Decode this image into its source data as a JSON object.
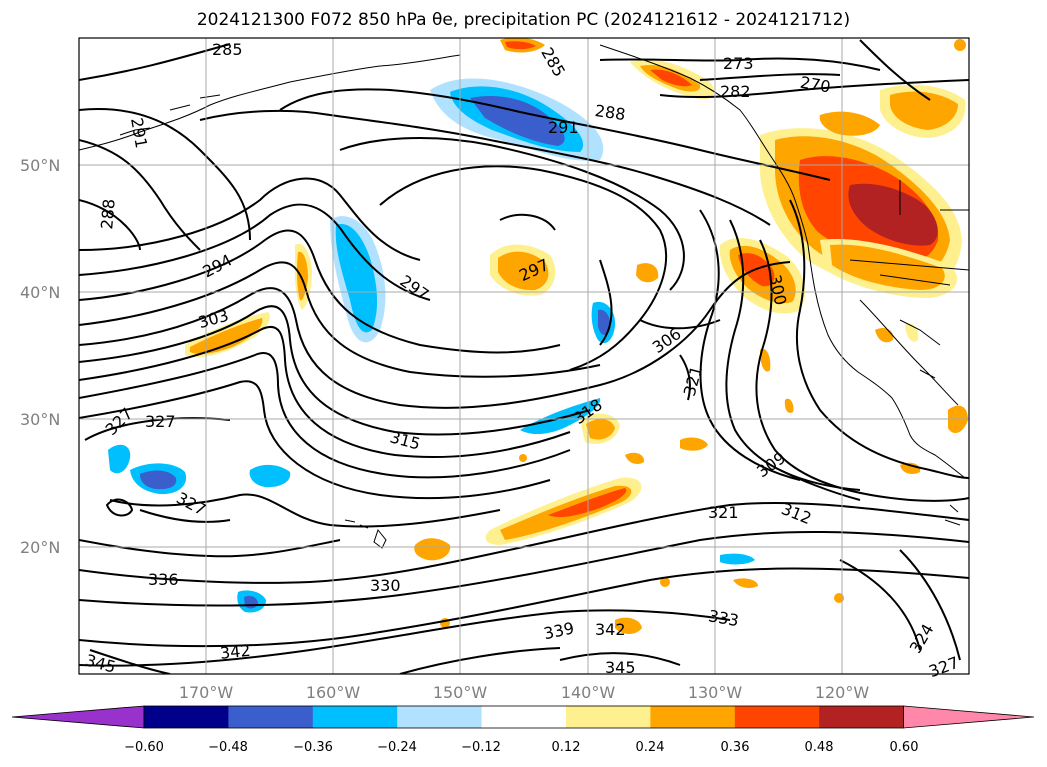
{
  "title": "2024121300 F072 850 hPa θe, precipitation PC (2024121612 - 2024121712)",
  "map": {
    "lon_range": [
      -180,
      -110
    ],
    "lat_range": [
      10,
      60
    ],
    "lat_ticks": [
      "50°N",
      "40°N",
      "30°N",
      "20°N"
    ],
    "lon_ticks": [
      "170°W",
      "160°W",
      "150°W",
      "140°W",
      "130°W",
      "120°W"
    ],
    "gridlines": true
  },
  "contour_labels": [
    "285",
    "285",
    "273",
    "270",
    "282",
    "288",
    "291",
    "291",
    "288",
    "294",
    "297",
    "297",
    "303",
    "306",
    "300",
    "321",
    "327",
    "327",
    "315",
    "318",
    "309",
    "327",
    "321",
    "312",
    "336",
    "330",
    "339",
    "342",
    "333",
    "324",
    "342",
    "345",
    "345",
    "327"
  ],
  "colorbar": {
    "ticks": [
      "−0.60",
      "−0.48",
      "−0.36",
      "−0.24",
      "−0.12",
      "0.12",
      "0.24",
      "0.36",
      "0.48",
      "0.60"
    ],
    "colors": [
      "#9932cc",
      "#00008b",
      "#3a5fcd",
      "#00bfff",
      "#b0e2ff",
      "#ffffff",
      "#fff08f",
      "#ffa500",
      "#ff4500",
      "#b22222",
      "#ff88aa"
    ],
    "extend": "both"
  }
}
